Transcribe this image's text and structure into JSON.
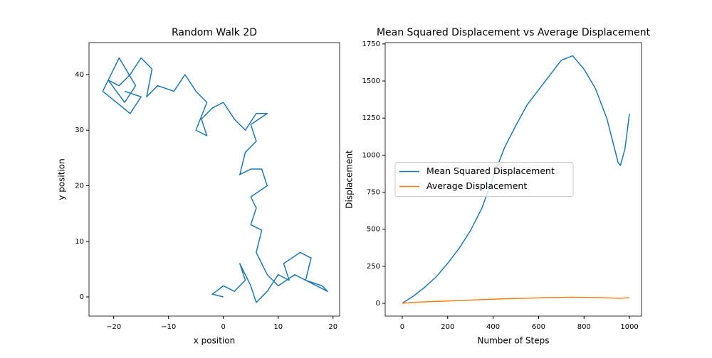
{
  "chart_data": [
    {
      "type": "line",
      "title": "Random Walk 2D",
      "xlabel": "x position",
      "ylabel": "y position",
      "x": [
        0,
        -2,
        0,
        2,
        4,
        3,
        5,
        6,
        8,
        10,
        12,
        11,
        14,
        16,
        15,
        18,
        19,
        17,
        13,
        10,
        8,
        6,
        7,
        5,
        6,
        5,
        8,
        7,
        5,
        3,
        4,
        6,
        5,
        8,
        6,
        4,
        2,
        0,
        -2,
        -4,
        -3,
        -5,
        -3,
        -5,
        -7,
        -9,
        -12,
        -14,
        -13,
        -15,
        -17,
        -19,
        -21,
        -18,
        -16,
        -19,
        -22,
        -17,
        -15,
        -18
      ],
      "values": [
        0,
        0.5,
        2,
        1,
        3,
        6,
        2,
        -1,
        1,
        4,
        3,
        6,
        8,
        7,
        3,
        2,
        1,
        2,
        4,
        2,
        4,
        8,
        12,
        13,
        16,
        18,
        20,
        23,
        23,
        22,
        26,
        28,
        31,
        33,
        33,
        30,
        32,
        35,
        34,
        32,
        29,
        30,
        35,
        37,
        40,
        37,
        38,
        36,
        41,
        43,
        40,
        38,
        39,
        35,
        38,
        43,
        37,
        33,
        36,
        37
      ],
      "color": "#1f77b4",
      "xlim": [
        -24.5,
        21.2
      ],
      "ylim": [
        -3.45,
        45.75
      ],
      "xticks": [
        {
          "value": -20,
          "label": "−20"
        },
        {
          "value": -10,
          "label": "−10"
        },
        0,
        10,
        20
      ],
      "yticks": [
        0,
        10,
        20,
        30,
        40
      ]
    },
    {
      "type": "line",
      "title": "Mean Squared Displacement vs Average Displacement",
      "xlabel": "Number of Steps",
      "ylabel": "Displacement",
      "x": [
        0,
        50,
        100,
        150,
        200,
        250,
        300,
        350,
        400,
        450,
        500,
        550,
        600,
        650,
        700,
        750,
        800,
        850,
        900,
        950,
        960,
        980,
        1000
      ],
      "series": [
        {
          "name": "Mean Squared Displacement",
          "color": "#1f77b4",
          "values": [
            0,
            50,
            110,
            180,
            270,
            370,
            490,
            640,
            850,
            1050,
            1200,
            1340,
            1440,
            1540,
            1640,
            1670,
            1580,
            1450,
            1250,
            950,
            930,
            1040,
            1280
          ]
        },
        {
          "name": "Average Displacement",
          "color": "#ff7f0e",
          "values": [
            0,
            7,
            10,
            13,
            16,
            19,
            22,
            25,
            28,
            31,
            33,
            35,
            37,
            39,
            40,
            41,
            40,
            39,
            37,
            35,
            34,
            36,
            38
          ]
        }
      ],
      "legend": "center left",
      "xlim": [
        -75,
        1053
      ],
      "ylim": [
        -86,
        1759
      ],
      "xticks": [
        0,
        200,
        400,
        600,
        800,
        1000
      ],
      "yticks": [
        0,
        250,
        500,
        750,
        1000,
        1250,
        1500,
        1750
      ]
    }
  ]
}
